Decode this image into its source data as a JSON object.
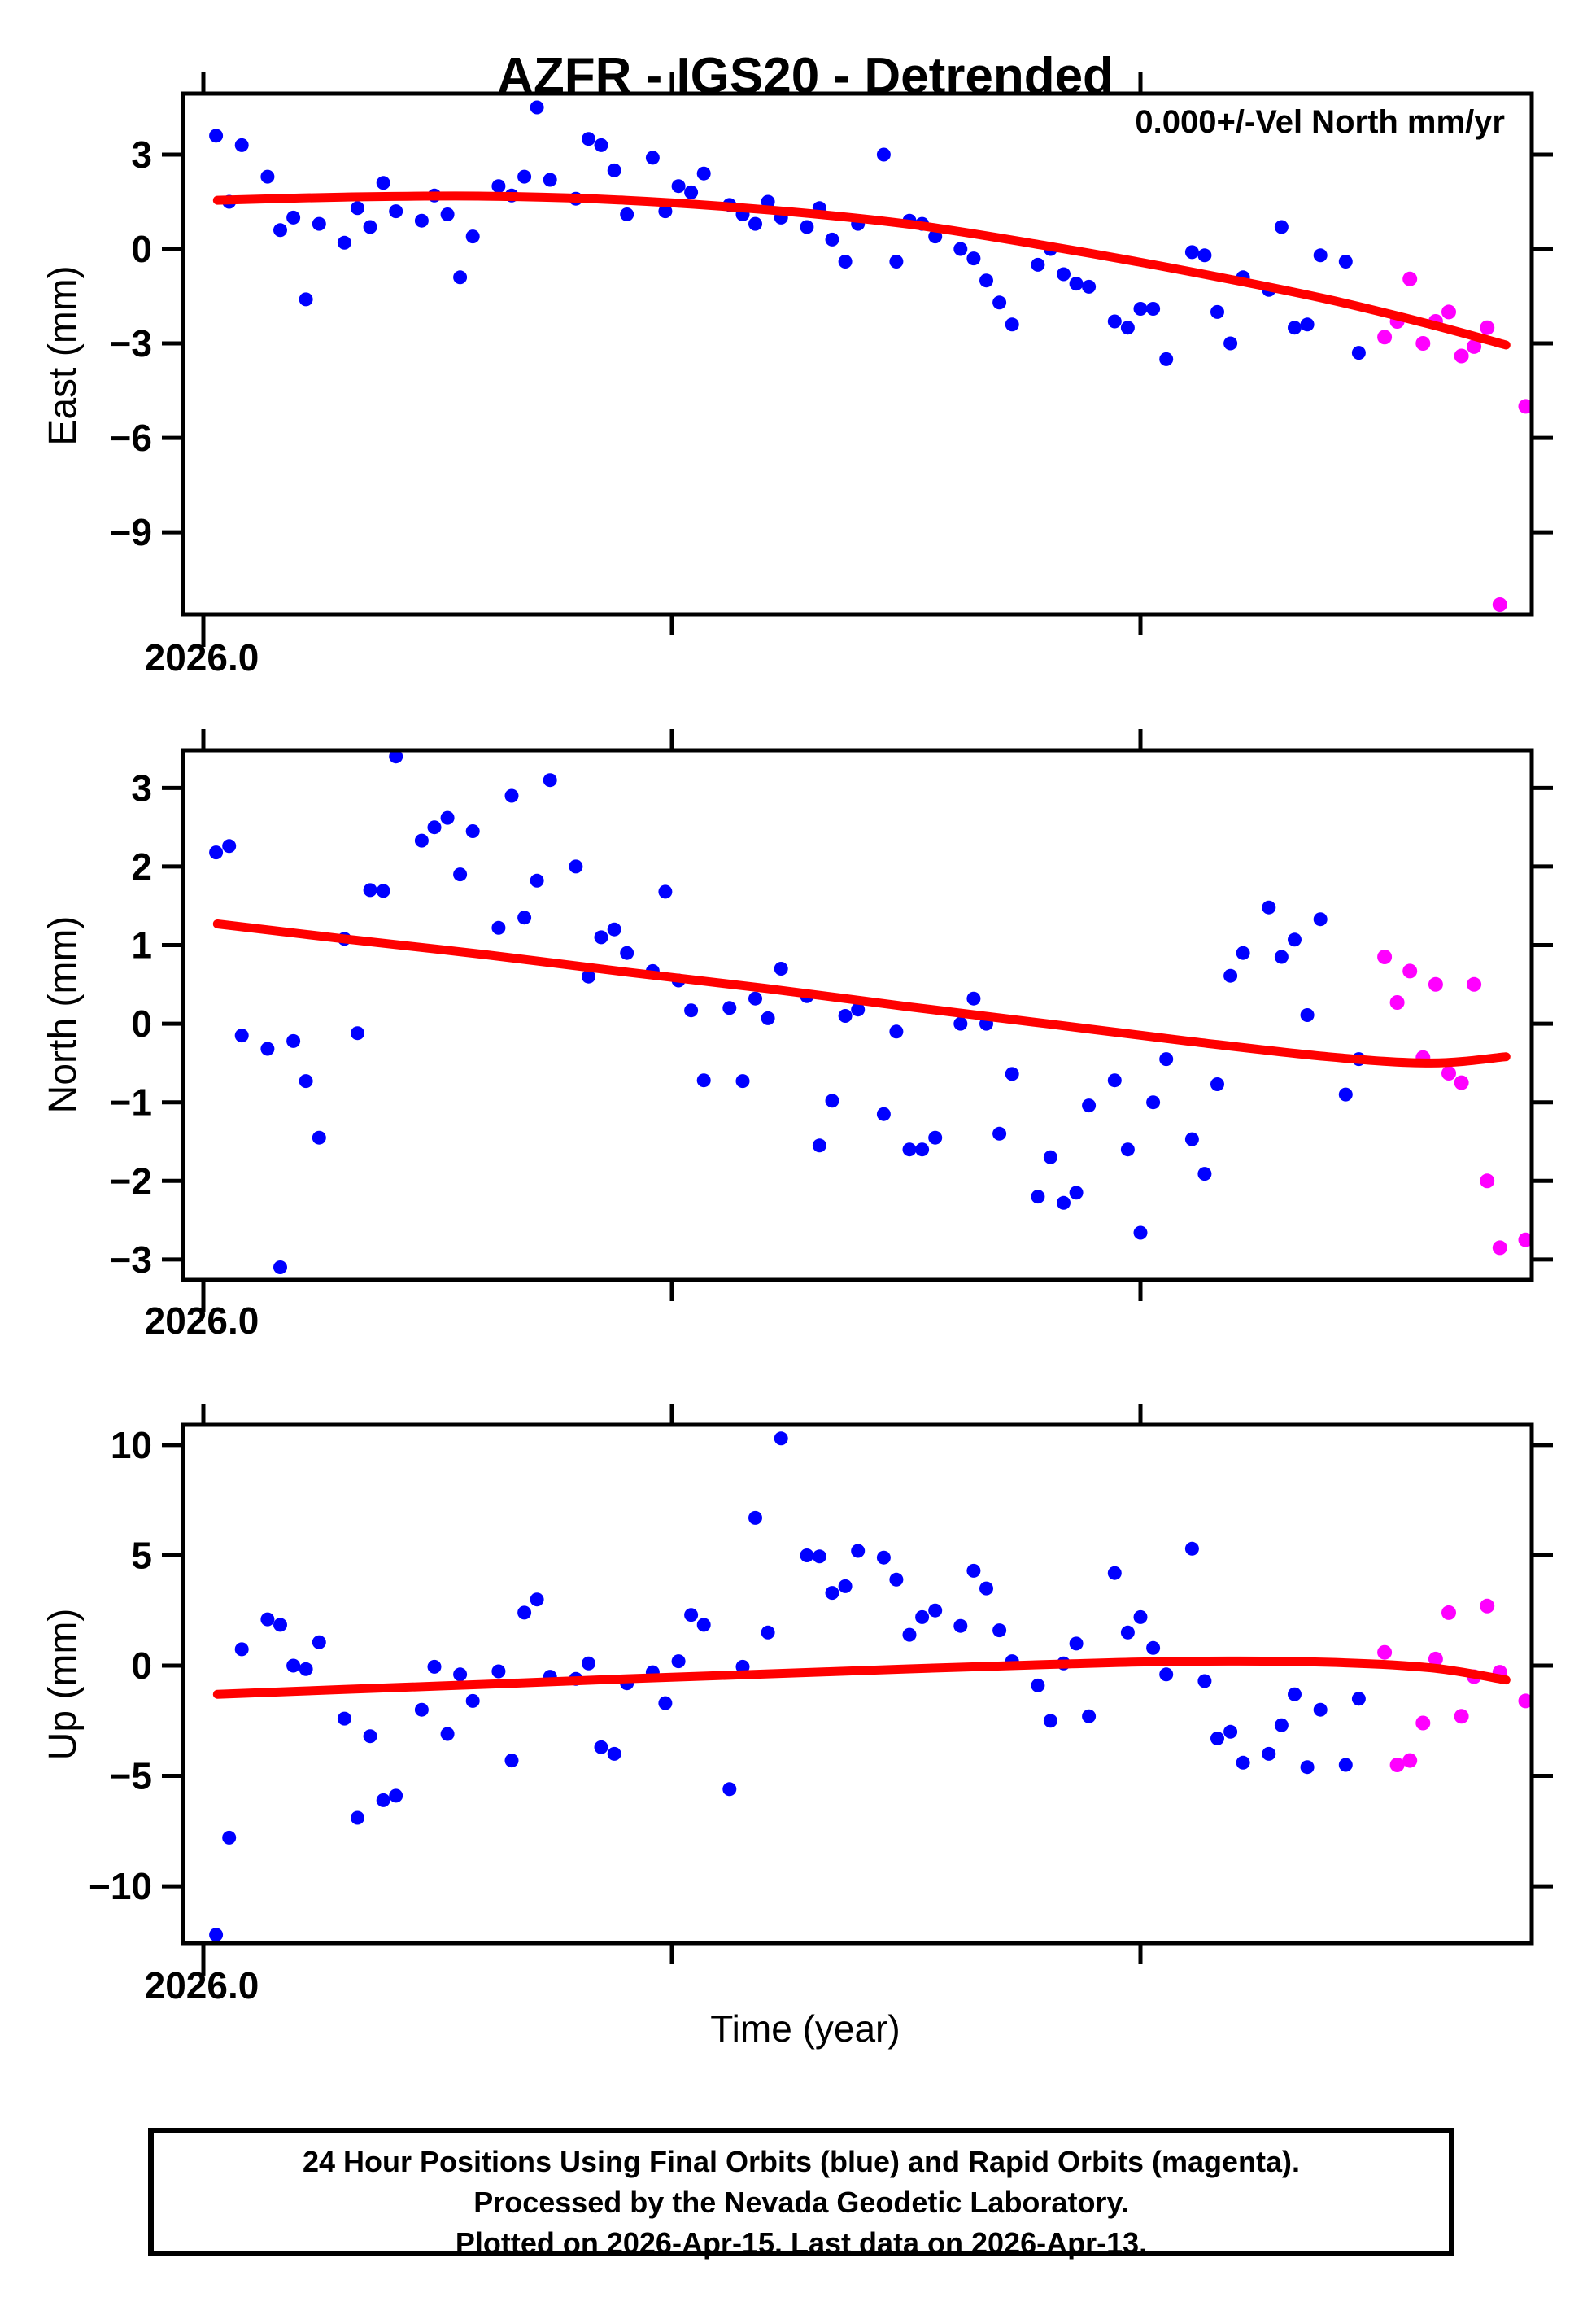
{
  "page": {
    "title": "AZFR - IGS20 - Detrended",
    "velocity_label": "0.000+/-Vel North mm/yr",
    "xlabel": "Time (year)"
  },
  "caption": {
    "line1": "24 Hour Positions Using Final Orbits (blue) and Rapid Orbits (magenta).",
    "line2": "Processed by the Nevada Geodetic Laboratory.",
    "line3": "Plotted on 2026-Apr-15. Last data on 2026-Apr-13."
  },
  "colors": {
    "final_orbits": "#0000ff",
    "rapid_orbits": "#ff00ff",
    "trend": "#ff0000",
    "frame": "#000000",
    "background": "#ffffff"
  },
  "chart_data": {
    "type": "scatter",
    "station": "AZFR",
    "reference_frame": "IGS20",
    "mode": "Detrended",
    "xlim": [
      2025.9957,
      2026.2832
    ],
    "xticks": [
      2026.0,
      2026.1,
      2026.2
    ],
    "x_tick_label": "2026.0",
    "grid": false,
    "x_final": [
      2026.0027,
      2026.0055,
      2026.0082,
      2026.0137,
      2026.0164,
      2026.0192,
      2026.0219,
      2026.0247,
      2026.0301,
      2026.0329,
      2026.0356,
      2026.0384,
      2026.0411,
      2026.0466,
      2026.0493,
      2026.0521,
      2026.0548,
      2026.0575,
      2026.063,
      2026.0658,
      2026.0685,
      2026.0712,
      2026.074,
      2026.0795,
      2026.0822,
      2026.0849,
      2026.0877,
      2026.0904,
      2026.0959,
      2026.0986,
      2026.1014,
      2026.1041,
      2026.1068,
      2026.1123,
      2026.1151,
      2026.1178,
      2026.1205,
      2026.1233,
      2026.1288,
      2026.1315,
      2026.1342,
      2026.137,
      2026.1397,
      2026.1452,
      2026.1479,
      2026.1507,
      2026.1534,
      2026.1562,
      2026.1616,
      2026.1644,
      2026.1671,
      2026.1699,
      2026.1726,
      2026.1781,
      2026.1808,
      2026.1836,
      2026.1863,
      2026.189,
      2026.1945,
      2026.1973,
      2026.2,
      2026.2027,
      2026.2055,
      2026.211,
      2026.2137,
      2026.2164,
      2026.2192,
      2026.2219,
      2026.2274,
      2026.2301,
      2026.2329,
      2026.2356,
      2026.2384,
      2026.2438,
      2026.2466
    ],
    "x_rapid": [
      2026.2521,
      2026.2548,
      2026.2575,
      2026.2603,
      2026.263,
      2026.2658,
      2026.2685,
      2026.2712,
      2026.274,
      2026.2767,
      2026.2822
    ],
    "panels": [
      {
        "name": "East",
        "ylabel": "East (mm)",
        "x_tick_label": "2026.0",
        "ylim": [
          -11.61,
          4.94
        ],
        "yticks": [
          3,
          0,
          -3,
          -6,
          -9
        ],
        "y_final": [
          3.6,
          1.5,
          3.3,
          2.3,
          0.6,
          1.0,
          -1.6,
          0.8,
          0.2,
          1.3,
          0.7,
          2.1,
          1.2,
          0.9,
          1.7,
          1.1,
          -0.9,
          0.4,
          2.0,
          1.7,
          2.3,
          4.5,
          2.2,
          1.6,
          3.5,
          3.3,
          2.5,
          1.1,
          2.9,
          1.2,
          2.0,
          1.8,
          2.4,
          1.4,
          1.1,
          0.8,
          1.5,
          1.0,
          0.7,
          1.3,
          0.3,
          -0.4,
          0.8,
          3.0,
          -0.4,
          0.9,
          0.8,
          0.4,
          0.0,
          -0.3,
          -1.0,
          -1.7,
          -2.4,
          -0.5,
          0.0,
          -0.8,
          -1.1,
          -1.2,
          -2.3,
          -2.5,
          -1.9,
          -1.9,
          -3.5,
          -0.1,
          -0.2,
          -2.0,
          -3.0,
          -0.9,
          -1.3,
          0.7,
          -2.5,
          -2.4,
          -0.2,
          -0.4,
          -3.3
        ],
        "y_rapid": [
          -2.8,
          -2.3,
          -0.95,
          -3.0,
          -2.3,
          -2.0,
          -3.4,
          -3.1,
          -2.5,
          -11.3,
          -5.0
        ],
        "trend": {
          "x": [
            2026.003,
            2026.03,
            2026.06,
            2026.09,
            2026.12,
            2026.15,
            2026.18,
            2026.21,
            2026.24,
            2026.262,
            2026.278
          ],
          "y": [
            1.55,
            1.65,
            1.68,
            1.55,
            1.25,
            0.8,
            0.1,
            -0.7,
            -1.6,
            -2.4,
            -3.05
          ]
        }
      },
      {
        "name": "North",
        "ylabel": "North (mm)",
        "x_tick_label": "2026.0",
        "ylim": [
          -3.26,
          3.48
        ],
        "yticks": [
          3,
          2,
          1,
          0,
          -1,
          -2,
          -3
        ],
        "y_final": [
          2.18,
          2.26,
          -0.15,
          -0.32,
          -3.1,
          -0.22,
          -0.73,
          -1.45,
          1.08,
          -0.12,
          1.7,
          1.69,
          3.4,
          2.33,
          2.5,
          2.62,
          1.9,
          2.45,
          1.22,
          2.9,
          1.35,
          1.82,
          3.1,
          2.0,
          0.6,
          1.1,
          1.2,
          0.9,
          0.67,
          1.68,
          0.55,
          0.17,
          -0.72,
          0.2,
          -0.73,
          0.32,
          0.07,
          0.7,
          0.35,
          -1.55,
          -0.98,
          0.1,
          0.18,
          -1.15,
          -0.1,
          -1.6,
          -1.6,
          -1.45,
          0.0,
          0.32,
          0.0,
          -1.4,
          -0.64,
          -2.2,
          -1.7,
          -2.28,
          -2.15,
          -1.04,
          -0.72,
          -1.6,
          -2.66,
          -1.0,
          -0.45,
          -1.47,
          -1.91,
          -0.77,
          0.61,
          0.9,
          1.48,
          0.85,
          1.07,
          0.11,
          1.33,
          -0.9,
          -0.45
        ],
        "y_rapid": [
          0.85,
          0.27,
          0.67,
          -0.43,
          0.5,
          -0.63,
          -0.75,
          0.5,
          -2.0,
          -2.85,
          -2.75
        ],
        "trend": {
          "x": [
            2026.003,
            2026.03,
            2026.06,
            2026.09,
            2026.12,
            2026.15,
            2026.18,
            2026.21,
            2026.24,
            2026.262,
            2026.278
          ],
          "y": [
            1.27,
            1.08,
            0.88,
            0.66,
            0.45,
            0.22,
            0.0,
            -0.22,
            -0.42,
            -0.5,
            -0.42
          ]
        }
      },
      {
        "name": "Up",
        "ylabel": "Up (mm)",
        "x_tick_label": "2026.0",
        "ylim": [
          -12.58,
          10.92
        ],
        "yticks": [
          10,
          5,
          0,
          -5,
          -10
        ],
        "y_final": [
          -12.2,
          -7.8,
          0.74,
          2.1,
          1.85,
          0.0,
          -0.16,
          1.06,
          -2.4,
          -6.9,
          -3.2,
          -6.1,
          -5.9,
          -2.0,
          -0.05,
          -3.1,
          -0.4,
          -1.6,
          -0.26,
          -4.3,
          2.4,
          3.0,
          -0.5,
          -0.6,
          0.1,
          -3.7,
          -4.0,
          -0.8,
          -0.3,
          -1.7,
          0.2,
          2.3,
          1.85,
          -5.6,
          -0.05,
          6.7,
          1.5,
          10.3,
          5.0,
          4.95,
          3.3,
          3.6,
          5.2,
          4.9,
          3.9,
          1.4,
          2.2,
          2.5,
          1.8,
          4.3,
          3.5,
          1.6,
          0.2,
          -0.9,
          -2.5,
          0.1,
          1.0,
          -2.3,
          4.2,
          1.5,
          2.2,
          0.8,
          -0.4,
          5.3,
          -0.7,
          -3.3,
          -3.0,
          -4.4,
          -4.0,
          -2.7,
          -1.3,
          -4.6,
          -2.0,
          -4.5,
          -1.5
        ],
        "y_rapid": [
          0.6,
          -4.5,
          -4.3,
          -2.6,
          0.3,
          2.4,
          -2.3,
          -0.5,
          2.7,
          -0.3,
          -1.6
        ],
        "trend": {
          "x": [
            2026.003,
            2026.03,
            2026.06,
            2026.09,
            2026.12,
            2026.15,
            2026.18,
            2026.21,
            2026.24,
            2026.262,
            2026.278
          ],
          "y": [
            -1.3,
            -1.08,
            -0.85,
            -0.6,
            -0.38,
            -0.15,
            0.05,
            0.2,
            0.15,
            -0.1,
            -0.65
          ]
        }
      }
    ]
  }
}
